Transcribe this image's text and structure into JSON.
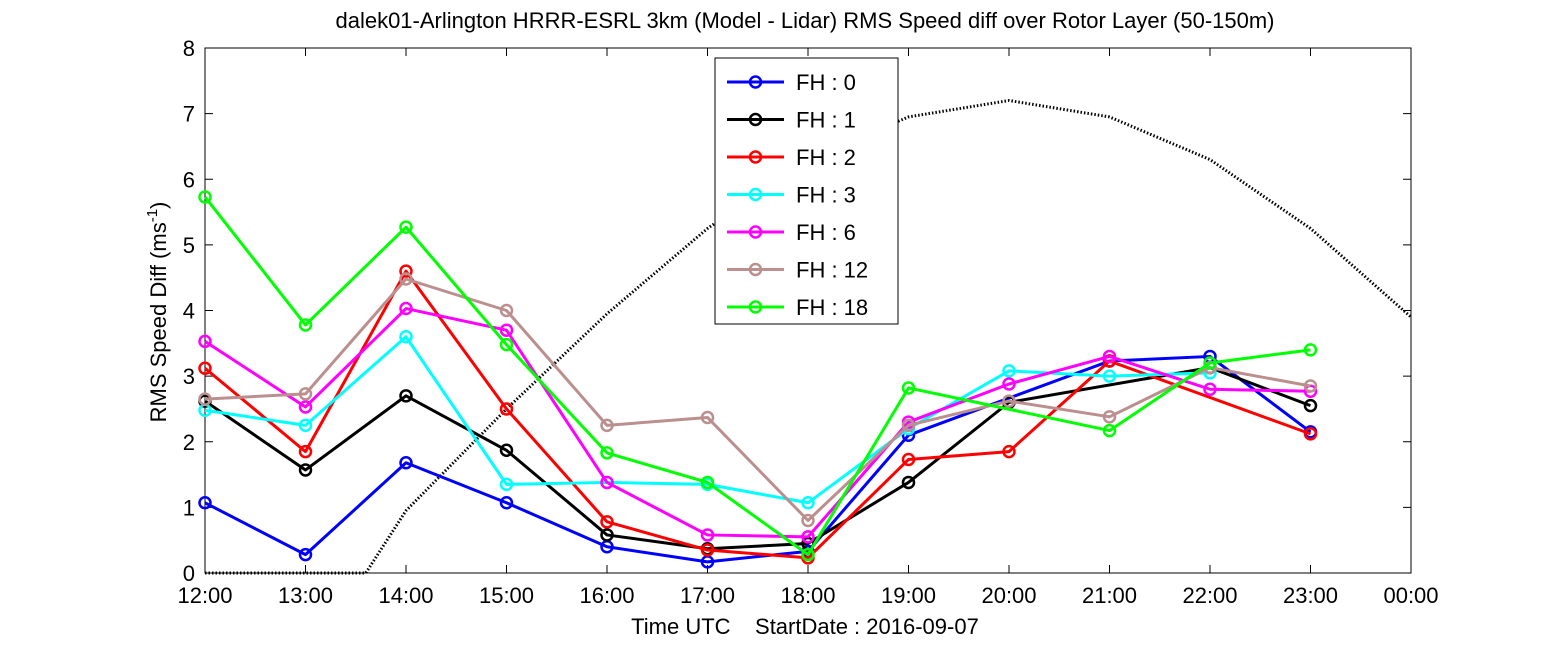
{
  "chart_data": {
    "type": "line",
    "title": "dalek01-Arlington HRRR-ESRL 3km (Model - Lidar) RMS Speed diff over Rotor Layer (50-150m)",
    "xlabel": "Time UTC    StartDate : 2016-09-07",
    "ylabel": "RMS Speed Diff (ms",
    "ylabel_sup": "-1",
    "ylabel_close": ")",
    "x_ticks": [
      "12:00",
      "13:00",
      "14:00",
      "15:00",
      "16:00",
      "17:00",
      "18:00",
      "19:00",
      "20:00",
      "21:00",
      "22:00",
      "23:00",
      "00:00"
    ],
    "y_ticks": [
      "0",
      "1",
      "2",
      "3",
      "4",
      "5",
      "6",
      "7",
      "8"
    ],
    "ylim": [
      0,
      8
    ],
    "xlim": [
      12,
      24
    ],
    "grid": false,
    "legend_position": "top-center",
    "series": [
      {
        "name": "FH : 0",
        "color": "#0000ff",
        "x": [
          12,
          13,
          14,
          15,
          16,
          17,
          18,
          19,
          21,
          22,
          23
        ],
        "values": [
          1.07,
          0.28,
          1.68,
          1.07,
          0.4,
          0.17,
          0.33,
          2.1,
          3.23,
          3.3,
          2.15
        ]
      },
      {
        "name": "FH : 1",
        "color": "#000000",
        "x": [
          12,
          13,
          14,
          15,
          16,
          17,
          18,
          19,
          20,
          22,
          23
        ],
        "values": [
          2.62,
          1.57,
          2.7,
          1.87,
          0.58,
          0.37,
          0.45,
          1.38,
          2.6,
          3.13,
          2.55
        ]
      },
      {
        "name": "FH : 2",
        "color": "#ff0000",
        "x": [
          12,
          13,
          14,
          15,
          16,
          17,
          18,
          19,
          20,
          21,
          23
        ],
        "values": [
          3.12,
          1.85,
          4.6,
          2.5,
          0.78,
          0.35,
          0.23,
          1.73,
          1.85,
          3.23,
          2.12
        ]
      },
      {
        "name": "FH : 3",
        "color": "#00ffff",
        "x": [
          12,
          13,
          14,
          15,
          16,
          17,
          18,
          19,
          20,
          21,
          22
        ],
        "values": [
          2.48,
          2.25,
          3.6,
          1.35,
          1.38,
          1.35,
          1.07,
          2.2,
          3.08,
          3.0,
          3.05
        ]
      },
      {
        "name": "FH : 6",
        "color": "#ff00ff",
        "x": [
          12,
          13,
          14,
          15,
          16,
          17,
          18,
          19,
          20,
          21,
          22,
          23
        ],
        "values": [
          3.53,
          2.53,
          4.03,
          3.7,
          1.38,
          0.58,
          0.55,
          2.3,
          2.88,
          3.3,
          2.8,
          2.77
        ]
      },
      {
        "name": "FH : 12",
        "color": "#bc8f8f",
        "x": [
          12,
          13,
          14,
          15,
          16,
          17,
          18,
          19,
          20,
          21,
          22,
          23
        ],
        "values": [
          2.65,
          2.73,
          4.48,
          4.0,
          2.25,
          2.37,
          0.8,
          2.25,
          2.62,
          2.38,
          3.13,
          2.85
        ]
      },
      {
        "name": "FH : 18",
        "color": "#00ff00",
        "x": [
          12,
          13,
          14,
          15,
          16,
          17,
          18,
          19,
          21,
          22,
          23
        ],
        "values": [
          5.73,
          3.78,
          5.27,
          3.48,
          1.83,
          1.38,
          0.28,
          2.82,
          2.17,
          3.2,
          3.4
        ]
      }
    ],
    "gap_connectors": [
      {
        "series": "FH : 0",
        "x": [
          19,
          21
        ],
        "values": [
          2.1,
          3.23
        ]
      },
      {
        "series": "FH : 1",
        "x": [
          20,
          22
        ],
        "values": [
          2.6,
          3.13
        ]
      },
      {
        "series": "FH : 2",
        "x": [
          21,
          23
        ],
        "values": [
          3.23,
          2.12
        ]
      },
      {
        "series": "FH : 18",
        "x": [
          19,
          21
        ],
        "values": [
          2.82,
          2.17
        ]
      }
    ],
    "dotted_curve": {
      "color": "#000000",
      "x": [
        12,
        13,
        13.6,
        14,
        15,
        16,
        17,
        18,
        19,
        20,
        21,
        22,
        23,
        24
      ],
      "values": [
        0,
        0,
        0,
        0.95,
        2.5,
        3.95,
        5.25,
        6.3,
        6.95,
        7.2,
        6.95,
        6.3,
        5.25,
        3.9
      ]
    }
  }
}
